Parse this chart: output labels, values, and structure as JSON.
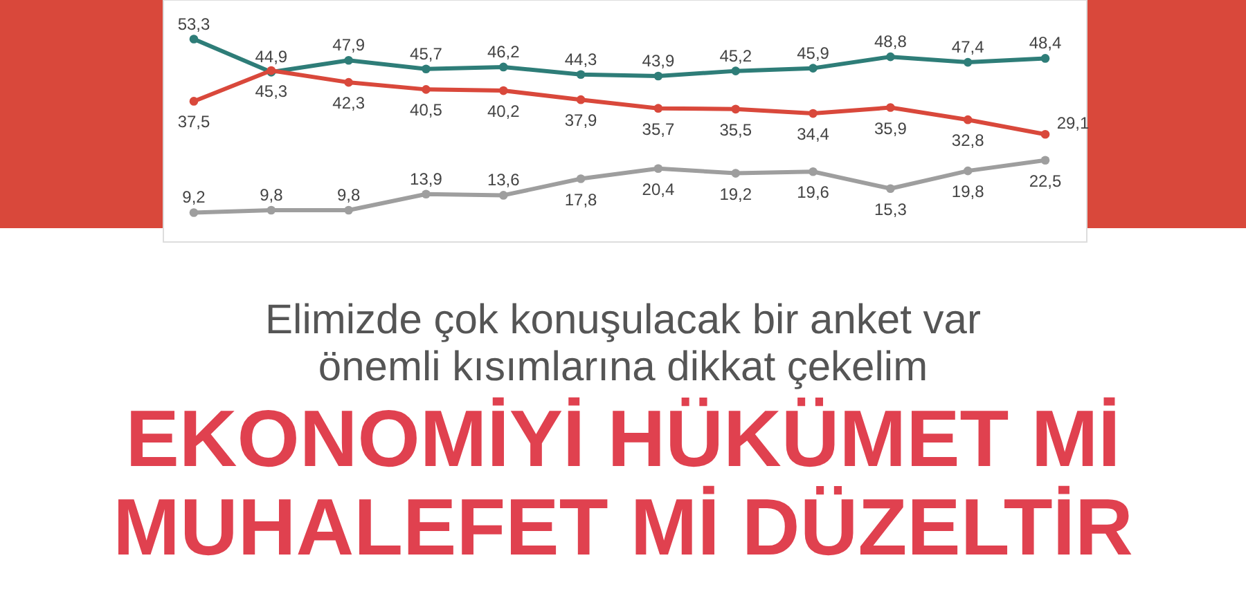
{
  "chart_data": {
    "type": "line",
    "title": "EKONOMİYİ HÜKÜMET Mİ MUHALEFET Mİ DÜZELTİR",
    "subtitle": "Elimizde çok konuşulacak bir anket var önemli kısımlarına dikkat çekelim",
    "categories": [
      null,
      null,
      null,
      null,
      null,
      null,
      null,
      null,
      null,
      null,
      null,
      null
    ],
    "series": [
      {
        "color": "#2e7d78",
        "values": [
          53.3,
          44.9,
          47.9,
          45.7,
          46.2,
          44.3,
          43.9,
          45.2,
          45.9,
          48.8,
          47.4,
          48.4
        ],
        "value_labels": [
          "53,3",
          "44,9",
          "47,9",
          "45,7",
          "46,2",
          "44,3",
          "43,9",
          "45,2",
          "45,9",
          "48,8",
          "47,4",
          "48,4"
        ]
      },
      {
        "color": "#d9483b",
        "values": [
          37.5,
          45.3,
          42.3,
          40.5,
          40.2,
          37.9,
          35.7,
          35.5,
          34.4,
          35.9,
          32.8,
          29.1
        ],
        "value_labels": [
          "37,5",
          "45,3",
          "42,3",
          "40,5",
          "40,2",
          "37,9",
          "35,7",
          "35,5",
          "34,4",
          "35,9",
          "32,8",
          "29,1"
        ]
      },
      {
        "color": "#9e9e9e",
        "values": [
          9.2,
          9.8,
          9.8,
          13.9,
          13.6,
          17.8,
          20.4,
          19.2,
          19.6,
          15.3,
          19.8,
          22.5
        ],
        "value_labels": [
          "9,2",
          "9,8",
          "9,8",
          "13,9",
          "13,6",
          "17,8",
          "20,4",
          "19,2",
          "19,6",
          "15,3",
          "19,8",
          "22,5"
        ]
      }
    ],
    "marker": "circle",
    "line_style": "solid"
  }
}
